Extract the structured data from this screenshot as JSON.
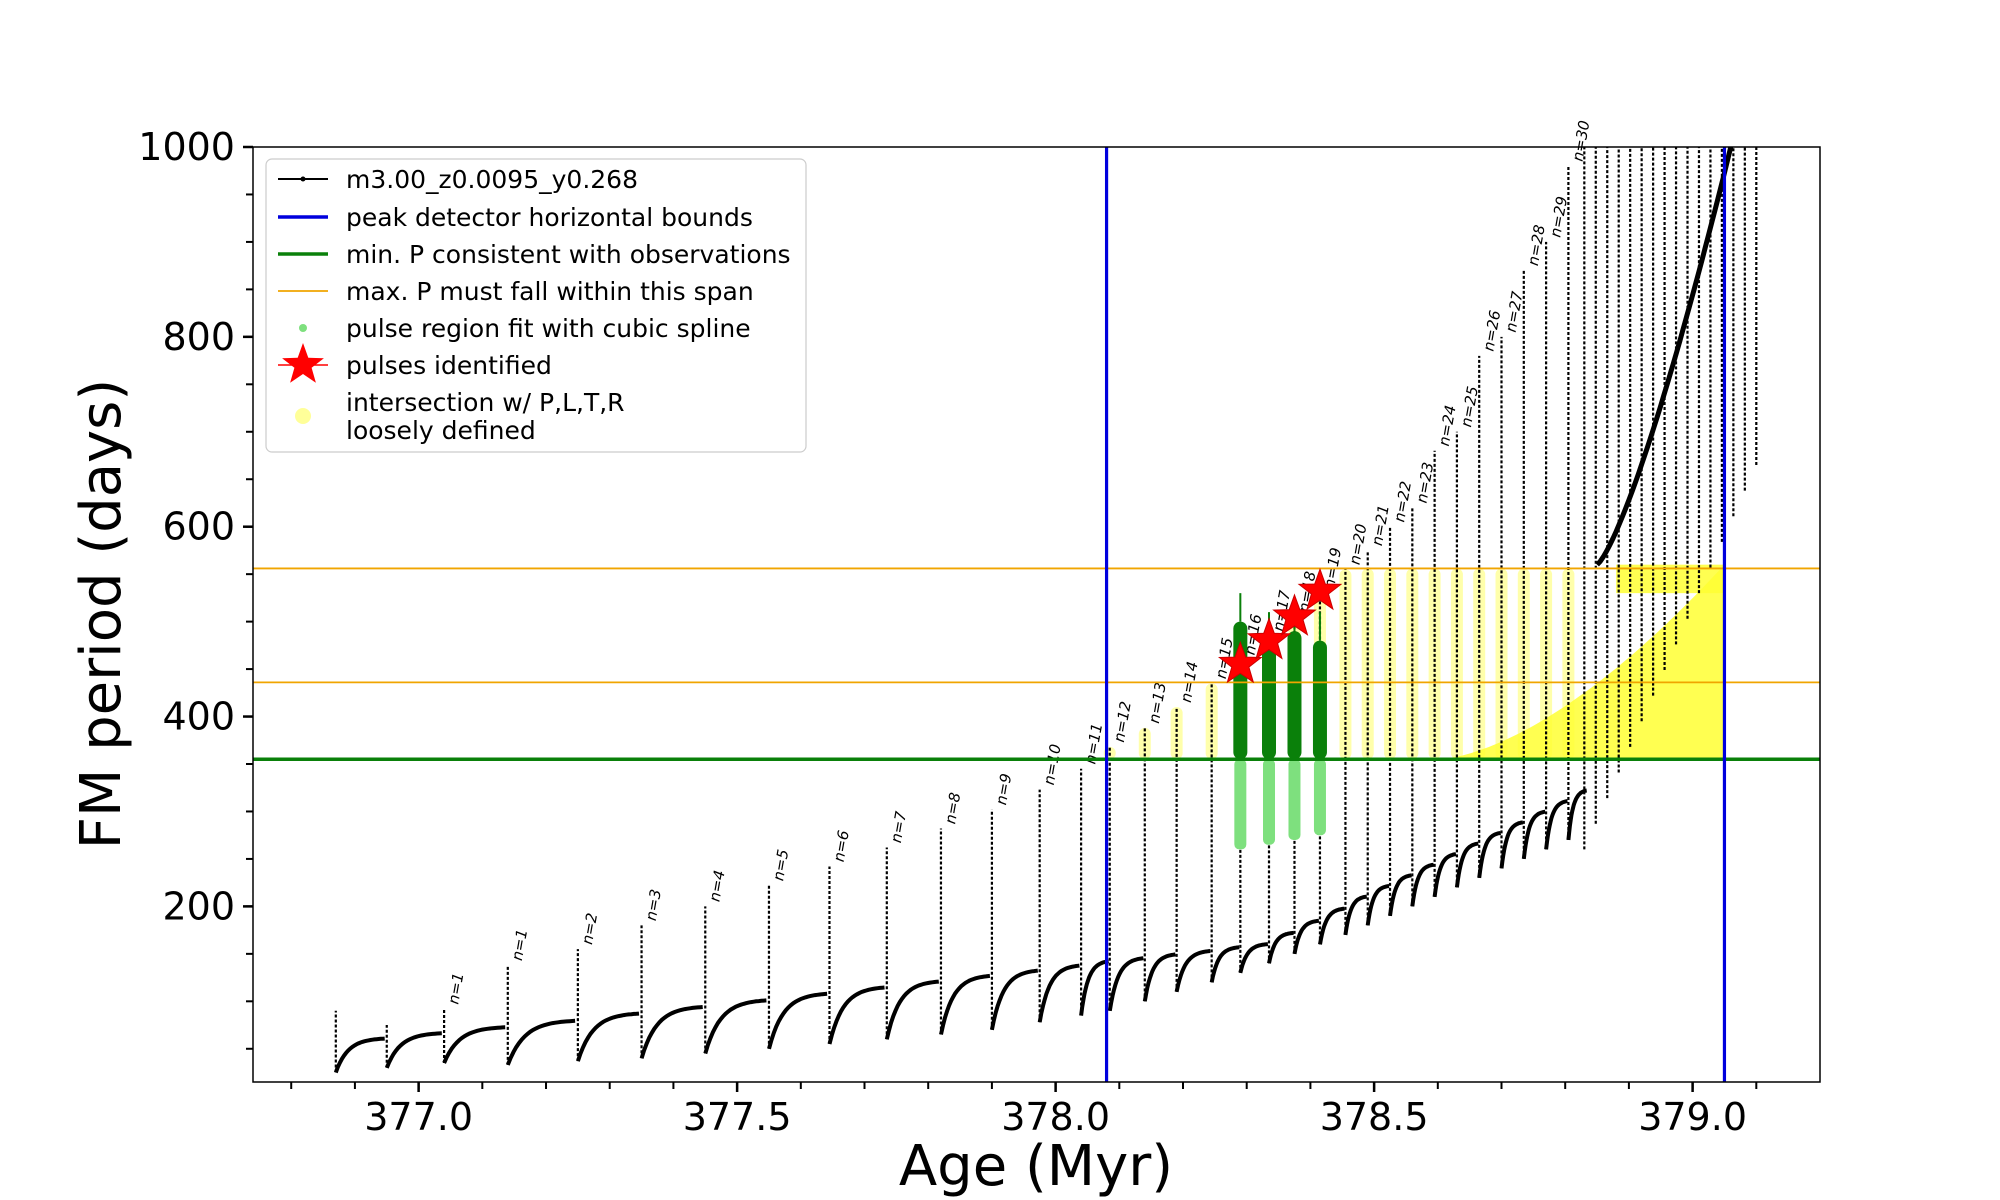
{
  "chart_data": {
    "type": "line",
    "title": "",
    "xlabel": "Age (Myr)",
    "ylabel": "FM period (days)",
    "xlim": [
      376.74,
      379.2
    ],
    "ylim": [
      15,
      1000
    ],
    "x_ticks": [
      377.0,
      377.5,
      378.0,
      378.5,
      379.0
    ],
    "x_tick_labels": [
      "377.0",
      "377.5",
      "378.0",
      "378.5",
      "379.0"
    ],
    "y_ticks": [
      200,
      400,
      600,
      800,
      1000
    ],
    "y_tick_labels": [
      "200",
      "400",
      "600",
      "800",
      "1000"
    ],
    "grid": false,
    "legend_position": "upper-left",
    "legend": [
      {
        "label": "m3.00_z0.0095_y0.268",
        "color": "#000000",
        "marker": "line-dot"
      },
      {
        "label": "peak detector horizontal bounds",
        "color": "#0000dd",
        "marker": "line"
      },
      {
        "label": "min. P consistent with observations",
        "color": "#0a800a",
        "marker": "line"
      },
      {
        "label": "max. P must fall within this span",
        "color": "#f0a500",
        "marker": "thin-line"
      },
      {
        "label": "pulse region fit with cubic spline",
        "color": "#7ee07e",
        "marker": "dot"
      },
      {
        "label": "pulses identified",
        "color": "#ff0000",
        "marker": "star"
      },
      {
        "label": "intersection w/ P,L,T,R",
        "label_line2": "loosely defined",
        "color": "#ffff99",
        "marker": "circle"
      }
    ],
    "vertical_lines": [
      {
        "x": 378.08,
        "color": "#0000dd",
        "role": "peak detector horizontal bounds"
      },
      {
        "x": 379.05,
        "color": "#0000dd",
        "role": "peak detector horizontal bounds"
      }
    ],
    "horizontal_lines": [
      {
        "y": 355,
        "color": "#0a800a",
        "role": "min. P consistent with observations"
      },
      {
        "y": 436,
        "color": "#f0a500",
        "role": "max. P span lower"
      },
      {
        "y": 556,
        "color": "#f0a500",
        "role": "max. P span upper"
      }
    ],
    "series": [
      {
        "name": "m3.00_z0.0095_y0.268",
        "color": "#000000",
        "pulses": [
          {
            "t": 376.87,
            "min": 25,
            "peak": 90
          },
          {
            "t": 376.95,
            "min": 30,
            "peak": 75
          },
          {
            "t": 377.04,
            "min": 35,
            "peak": 92,
            "n": "n=1"
          },
          {
            "t": 377.14,
            "min": 33,
            "peak": 138,
            "n": "n=1"
          },
          {
            "t": 377.25,
            "min": 37,
            "peak": 155,
            "n": "n=2"
          },
          {
            "t": 377.35,
            "min": 40,
            "peak": 180,
            "n": "n=3"
          },
          {
            "t": 377.45,
            "min": 45,
            "peak": 200,
            "n": "n=4"
          },
          {
            "t": 377.55,
            "min": 50,
            "peak": 222,
            "n": "n=5"
          },
          {
            "t": 377.645,
            "min": 55,
            "peak": 242,
            "n": "n=6"
          },
          {
            "t": 377.735,
            "min": 60,
            "peak": 262,
            "n": "n=7"
          },
          {
            "t": 377.82,
            "min": 65,
            "peak": 282,
            "n": "n=8"
          },
          {
            "t": 377.9,
            "min": 70,
            "peak": 302,
            "n": "n=9"
          },
          {
            "t": 377.975,
            "min": 78,
            "peak": 323,
            "n": "n=10"
          },
          {
            "t": 378.04,
            "min": 85,
            "peak": 345,
            "n": "n=11"
          },
          {
            "t": 378.085,
            "min": 90,
            "peak": 368,
            "n": "n=12"
          },
          {
            "t": 378.14,
            "min": 100,
            "peak": 388,
            "n": "n=13"
          },
          {
            "t": 378.19,
            "min": 110,
            "peak": 410,
            "n": "n=14"
          },
          {
            "t": 378.245,
            "min": 120,
            "peak": 435,
            "n": "n=15"
          },
          {
            "t": 378.29,
            "min": 130,
            "peak": 460,
            "n": "n=16"
          },
          {
            "t": 378.335,
            "min": 140,
            "peak": 485,
            "n": "n=17"
          },
          {
            "t": 378.375,
            "min": 150,
            "peak": 505,
            "n": "n=18"
          },
          {
            "t": 378.415,
            "min": 160,
            "peak": 530,
            "n": "n=19"
          },
          {
            "t": 378.455,
            "min": 170,
            "peak": 555,
            "n": "n=20"
          },
          {
            "t": 378.49,
            "min": 180,
            "peak": 575,
            "n": "n=21"
          },
          {
            "t": 378.525,
            "min": 190,
            "peak": 600,
            "n": "n=22"
          },
          {
            "t": 378.56,
            "min": 200,
            "peak": 620,
            "n": "n=23"
          },
          {
            "t": 378.595,
            "min": 210,
            "peak": 680,
            "n": "n=24"
          },
          {
            "t": 378.63,
            "min": 220,
            "peak": 700,
            "n": "n=25"
          },
          {
            "t": 378.665,
            "min": 230,
            "peak": 780,
            "n": "n=26"
          },
          {
            "t": 378.7,
            "min": 240,
            "peak": 800,
            "n": "n=27"
          },
          {
            "t": 378.735,
            "min": 250,
            "peak": 870,
            "n": "n=28"
          },
          {
            "t": 378.77,
            "min": 260,
            "peak": 900,
            "n": "n=29"
          },
          {
            "t": 378.805,
            "min": 270,
            "peak": 980,
            "n": "n=30"
          }
        ]
      },
      {
        "name": "pulses identified",
        "color": "#ff0000",
        "points": [
          {
            "x": 378.29,
            "y": 455
          },
          {
            "x": 378.335,
            "y": 480
          },
          {
            "x": 378.375,
            "y": 505
          },
          {
            "x": 378.415,
            "y": 532
          }
        ]
      },
      {
        "name": "min. P consistent with observations",
        "color": "#0a800a",
        "bars": [
          {
            "x": 378.29,
            "y0": 355,
            "y1": 520
          },
          {
            "x": 378.335,
            "y0": 355,
            "y1": 500
          },
          {
            "x": 378.375,
            "y0": 355,
            "y1": 510
          },
          {
            "x": 378.415,
            "y0": 355,
            "y1": 500
          }
        ]
      },
      {
        "name": "pulse region fit with cubic spline",
        "color": "#7ee07e",
        "bars": [
          {
            "x": 378.29,
            "y0": 260,
            "y1": 355
          },
          {
            "x": 378.335,
            "y0": 265,
            "y1": 355
          },
          {
            "x": 378.375,
            "y0": 270,
            "y1": 355
          },
          {
            "x": 378.415,
            "y0": 275,
            "y1": 355
          }
        ]
      }
    ],
    "pulse_annotations": [
      "n=1",
      "n=2",
      "n=3",
      "n=4",
      "n=5",
      "n=6",
      "n=7",
      "n=8",
      "n=9",
      "n=10",
      "n=11",
      "n=12",
      "n=13",
      "n=14",
      "n=15",
      "n=16",
      "n=17",
      "n=18",
      "n=19",
      "n=20",
      "n=21",
      "n=22",
      "n=23",
      "n=24",
      "n=25",
      "n=26",
      "n=27",
      "n=28",
      "n=29",
      "n=30"
    ]
  }
}
